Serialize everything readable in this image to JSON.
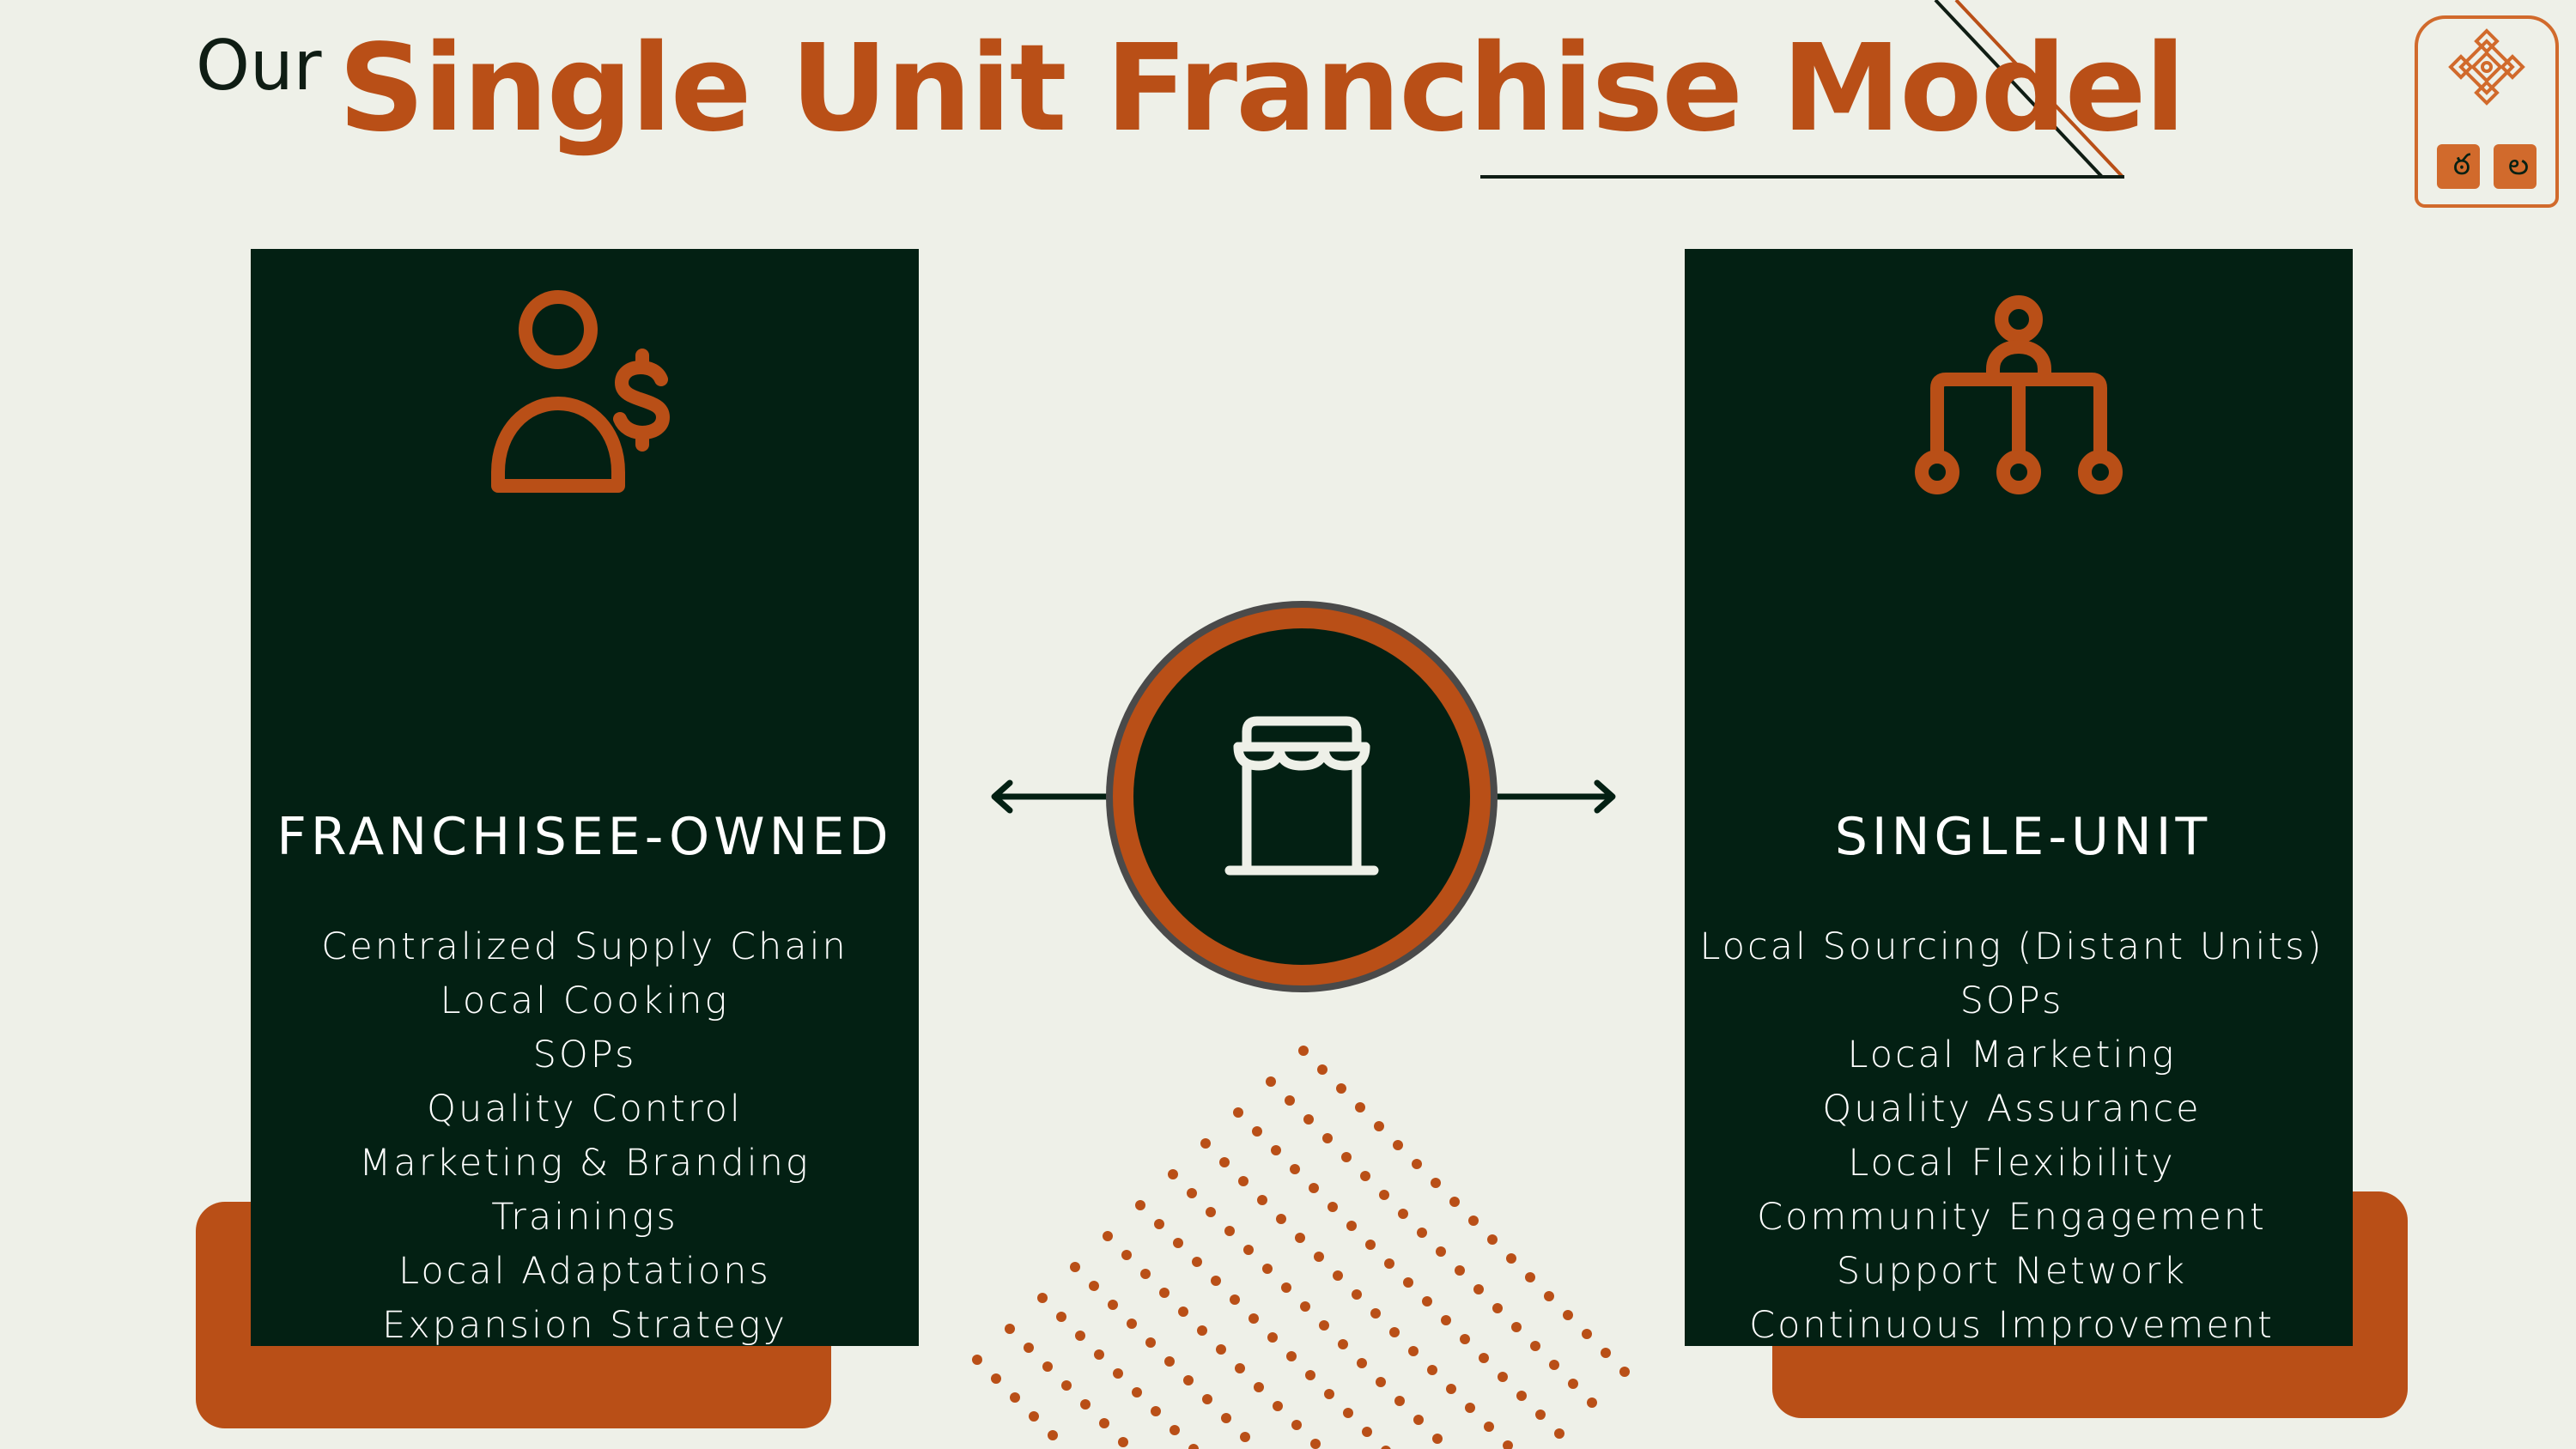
{
  "header": {
    "title_prefix": "Our",
    "title_main": "Single Unit Franchise Model"
  },
  "left_panel": {
    "icon": "person-dollar-icon",
    "title": "FRANCHISEE-OWNED",
    "items": [
      "Centralized Supply Chain",
      "Local Cooking",
      "SOPs",
      "Quality Control",
      "Marketing & Branding",
      "Trainings",
      "Local Adaptations",
      "Expansion Strategy"
    ]
  },
  "right_panel": {
    "icon": "hierarchy-icon",
    "title": "SINGLE-UNIT",
    "items": [
      "Local Sourcing (Distant Units)",
      "SOPs",
      "Local Marketing",
      "Quality Assurance",
      "Local Flexibility",
      "Community Engagement",
      "Support Network",
      "Continuous Improvement"
    ]
  },
  "center": {
    "icon": "storefront-icon"
  },
  "logo": {
    "icon": "ornament-logo-icon",
    "glyphs": [
      "ఠ",
      "ల"
    ]
  },
  "colors": {
    "background": "#eef0e8",
    "accent": "#b94f17",
    "panel": "#032013",
    "text_dark": "#0f1d14"
  }
}
